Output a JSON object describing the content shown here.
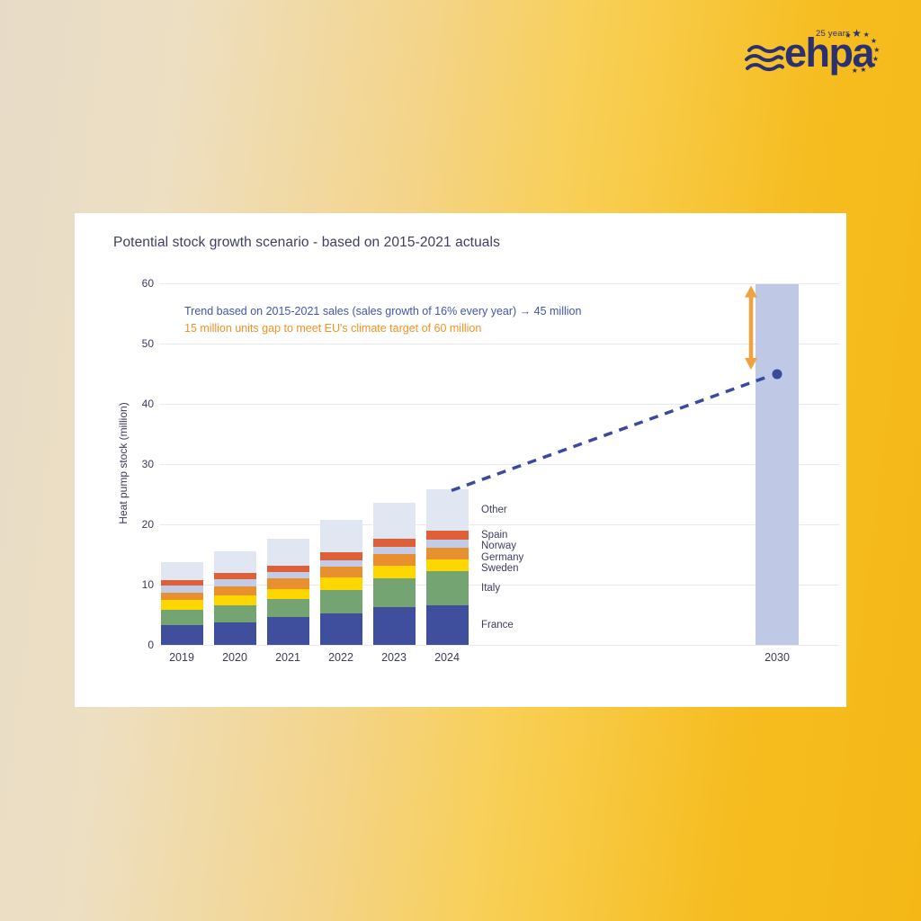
{
  "logo": {
    "brand": "ehpa",
    "anniversary": "25 years",
    "color": "#2a3070"
  },
  "card": {
    "title": "Potential stock growth scenario - based on 2015-2021 actuals"
  },
  "annotations": {
    "trend": "Trend based on 2015-2021 sales (sales growth of 16% every year) → 45 million",
    "trend_color": "#4355a9",
    "gap": "15 million units gap to meet EU's climate target of 60 million",
    "gap_color": "#f59124"
  },
  "chart_data": {
    "type": "bar",
    "stacked": true,
    "title": "Potential stock growth scenario - based on 2015-2021 actuals",
    "xlabel": "",
    "ylabel": "Heat pump stock (million)",
    "ylim": [
      0,
      60
    ],
    "yticks": [
      0,
      10,
      20,
      30,
      40,
      50,
      60
    ],
    "grid": "horizontal",
    "categories": [
      "2019",
      "2020",
      "2021",
      "2022",
      "2023",
      "2024"
    ],
    "series": [
      {
        "name": "France",
        "color": "#3f4f9e",
        "values": [
          3.3,
          3.8,
          4.6,
          5.2,
          6.3,
          6.6
        ]
      },
      {
        "name": "Italy",
        "color": "#73a471",
        "values": [
          2.5,
          2.7,
          3.0,
          3.9,
          4.8,
          5.7
        ]
      },
      {
        "name": "Sweden",
        "color": "#fed700",
        "values": [
          1.7,
          1.7,
          1.7,
          2.1,
          2.1,
          1.9
        ]
      },
      {
        "name": "Germany",
        "color": "#e89030",
        "values": [
          1.1,
          1.5,
          1.7,
          1.8,
          1.9,
          2.0
        ]
      },
      {
        "name": "Norway",
        "color": "#c2cce6",
        "values": [
          1.2,
          1.2,
          1.1,
          1.1,
          1.2,
          1.3
        ]
      },
      {
        "name": "Spain",
        "color": "#df5f38",
        "values": [
          1.0,
          1.0,
          1.1,
          1.3,
          1.4,
          1.5
        ]
      },
      {
        "name": "Other",
        "color": "#e1e6f3",
        "values": [
          3.0,
          3.6,
          4.5,
          5.4,
          5.9,
          6.8
        ]
      }
    ],
    "totals": [
      13.8,
      15.5,
      17.7,
      20.8,
      23.6,
      25.8
    ],
    "legend_order": [
      "Other",
      "Spain",
      "Norway",
      "Germany",
      "Sweden",
      "Italy",
      "France"
    ],
    "legend_position": "right-of-2024-bar",
    "target_bar": {
      "category": "2030",
      "value": 60,
      "color": "#bfc9e6"
    },
    "trend_line": {
      "from_category": "2024",
      "from_value": 25.8,
      "to_category": "2030",
      "to_value": 45,
      "style": "dashed",
      "color": "#3b4a9e"
    },
    "gap_arrow": {
      "from_value": 45,
      "to_value": 60,
      "gap": 15,
      "color": "#efa23f"
    }
  }
}
